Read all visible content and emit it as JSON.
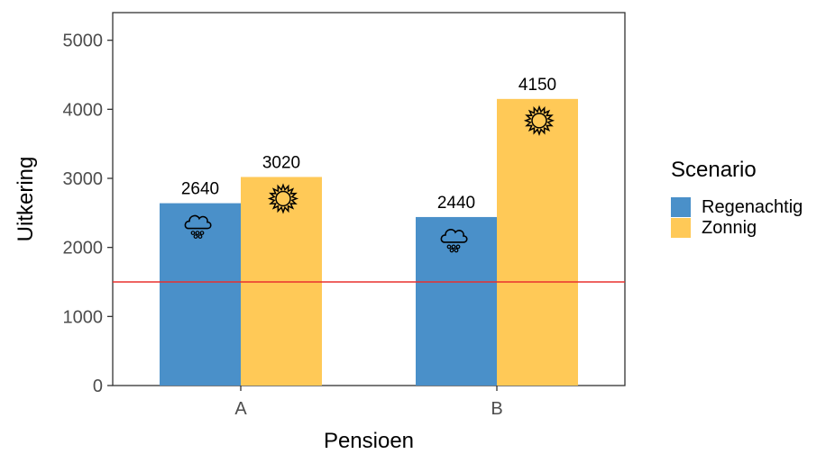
{
  "chart_data": {
    "type": "bar",
    "xlabel": "Pensioen",
    "ylabel": "Uitkering",
    "categories": [
      "A",
      "B"
    ],
    "series": [
      {
        "name": "Regenachtig",
        "values": [
          2640,
          2440
        ],
        "color": "#4a90c9",
        "icon": "rain-cloud-icon"
      },
      {
        "name": "Zonnig",
        "values": [
          3020,
          4150
        ],
        "color": "#ffc957",
        "icon": "sun-icon"
      }
    ],
    "ylim": [
      0,
      5400
    ],
    "yticks": [
      0,
      1000,
      2000,
      3000,
      4000,
      5000
    ],
    "reference_line": {
      "y": 1500,
      "color": "#e8312f"
    },
    "grid": false,
    "legend": {
      "title": "Scenario",
      "position": "right"
    }
  }
}
